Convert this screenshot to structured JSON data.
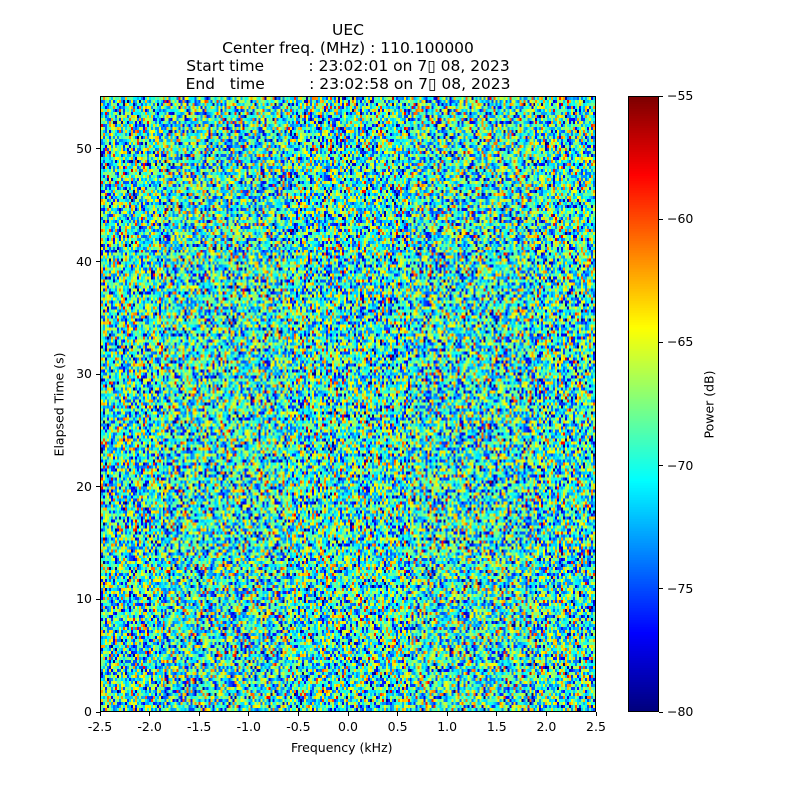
{
  "chart_data": {
    "type": "heatmap",
    "title_lines": [
      "UEC",
      "Center freq. (MHz) : 110.100000",
      "Start time         : 23:02:01 on 7▯ 08, 2023",
      "End   time         : 23:02:58 on 7▯ 08, 2023"
    ],
    "xlabel": "Frequency (kHz)",
    "ylabel": "Elapsed Time (s)",
    "xlim": [
      -2.5,
      2.5
    ],
    "ylim": [
      0,
      54.7
    ],
    "xticks": [
      "-2.5",
      "-2.0",
      "-1.5",
      "-1.0",
      "-0.5",
      "0.0",
      "0.5",
      "1.0",
      "1.5",
      "2.0",
      "2.5"
    ],
    "yticks": [
      "0",
      "10",
      "20",
      "30",
      "40",
      "50"
    ],
    "colorbar": {
      "label": "Power (dB)",
      "vmin": -80,
      "vmax": -55,
      "ticks": [
        "−80",
        "−75",
        "−70",
        "−65",
        "−60",
        "−55"
      ],
      "colormap": "jet"
    },
    "data_description_values": {
      "typical_min_db": -76,
      "typical_max_db": -62,
      "mean_db": -69.5
    },
    "grid": false
  }
}
